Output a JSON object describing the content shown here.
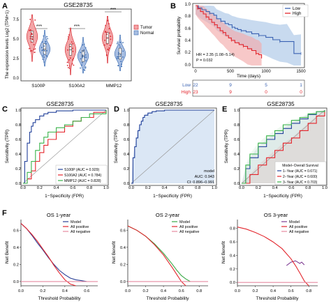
{
  "colors": {
    "tumor": "#d7232b",
    "normal": "#3b6db3",
    "low": "#3a62b2",
    "high": "#e3252c",
    "low_band": "#aac6e6",
    "high_band": "#f3aaaa",
    "roc_b_fill": "#dbe7f5",
    "green": "#39b34a",
    "blue_roc": "#22419a",
    "red_roc": "#e5242b",
    "diag": "#9a9a9a",
    "dca_model": "#2b3f96",
    "dca_allpos": "#e3262d",
    "dca_allneg": "#e58aa0",
    "dca_green": "#39a845",
    "dca_purple": "#7e3c93"
  },
  "panel_labels": [
    "A",
    "B",
    "C",
    "D",
    "E",
    "F"
  ],
  "panelA": {
    "title": "GSE28735",
    "ylabel": "The expression levels Log2 (TPM+1)",
    "yticks": [
      "0.0",
      "2.5",
      "5.0",
      "7.5"
    ],
    "categories": [
      "S100P",
      "S100A2",
      "MMP12"
    ],
    "significance": [
      "***",
      "***",
      "***"
    ],
    "legend": [
      "Tumor",
      "Normal"
    ]
  },
  "panelB": {
    "ylabel": "Survival probability",
    "yticks": [
      "0.0",
      "0.2",
      "0.4",
      "0.6",
      "0.8",
      "1.0"
    ],
    "xlabel": "Time (days)",
    "xticks": [
      "0",
      "500",
      "1000",
      "1500"
    ],
    "legend": [
      "Low",
      "High"
    ],
    "stats": [
      "HR = 2.35 (1.08−5.14)",
      "P = 0.032"
    ],
    "risk_table": {
      "rows": [
        "Low",
        "High"
      ],
      "low": [
        "22",
        "9",
        "5",
        "1"
      ],
      "high": [
        "23",
        "9",
        "0",
        "0"
      ]
    }
  },
  "panelC": {
    "title": "GSE28735",
    "xlabel": "1−Specificity (FPR)",
    "ylabel": "Sensitivity (TPR)",
    "ticks": [
      "0.0",
      "0.2",
      "0.4",
      "0.6",
      "0.8",
      "1.0"
    ],
    "legend": [
      "S100P (AUC = 0.929)",
      "S100A2 (AUC = 0.784)",
      "MMP12 (AUC = 0.828)"
    ]
  },
  "panelD": {
    "title": "GSE28735",
    "xlabel": "1−Specificity (FPR)",
    "ylabel": "Sensitivity (TPR)",
    "ticks": [
      "0.0",
      "0.2",
      "0.4",
      "0.6",
      "0.8",
      "1.0"
    ],
    "annot": [
      "model",
      "AUC: 0.943",
      "CI: 0.896−0.991"
    ]
  },
  "panelE": {
    "title": "GSE28735",
    "xlabel": "1−Specificity (FPR)",
    "ylabel": "Sensitivity (TPR)",
    "ticks": [
      "0.0",
      "0.2",
      "0.4",
      "0.6",
      "0.8",
      "1.0"
    ],
    "legend_title": "Model−Overall Survival",
    "legend": [
      "1−Year (AUC = 0.671)",
      "2−Year (AUC = 0.600)",
      "3−Year (AUC = 0.703)"
    ]
  },
  "panelF": [
    {
      "title": "OS 1-year",
      "ylabel": "Net Benefit",
      "xlabel": "Threshold Probability",
      "xticks": [
        "0.0",
        "0.2",
        "0.4",
        "0.6"
      ],
      "yticks": [
        "0.0",
        "0.2",
        "0.4",
        "0.6"
      ],
      "legend": [
        "Model",
        "All positive",
        "All negative"
      ]
    },
    {
      "title": "OS 2-year",
      "ylabel": "Net Benefit",
      "xlabel": "Threshold Probability",
      "xticks": [
        "0.0",
        "0.2",
        "0.4",
        "0.6",
        "0.8"
      ],
      "yticks": [
        "0.0",
        "0.2",
        "0.4",
        "0.6"
      ],
      "legend": [
        "Model",
        "All positive",
        "All negative"
      ]
    },
    {
      "title": "OS 3-year",
      "ylabel": "Net Benefit",
      "xlabel": "Threshold Probability",
      "xticks": [
        "0.0",
        "0.2",
        "0.4",
        "0.6",
        "0.8"
      ],
      "yticks": [
        "0.0",
        "0.2",
        "0.4",
        "0.6",
        "0.8"
      ],
      "legend": [
        "Model",
        "All positive",
        "All negative"
      ]
    }
  ],
  "chart_data": [
    {
      "type": "violin",
      "panel": "A",
      "title": "GSE28735",
      "categories": [
        "S100P",
        "S100A2",
        "MMP12"
      ],
      "series": [
        {
          "name": "Tumor",
          "medians": [
            5.5,
            3.8,
            5.3
          ]
        },
        {
          "name": "Normal",
          "medians": [
            3.9,
            3.0,
            3.3
          ]
        }
      ],
      "ylim": [
        0,
        9
      ]
    },
    {
      "type": "line",
      "panel": "B",
      "xlim": [
        0,
        1500
      ],
      "ylim": [
        0,
        1
      ],
      "series": [
        {
          "name": "Low",
          "x": [
            0,
            40,
            90,
            150,
            200,
            260,
            300,
            360,
            420,
            470,
            520,
            560,
            600,
            650,
            720,
            800,
            900,
            1000,
            1100,
            1200,
            1300,
            1400,
            1500
          ],
          "y": [
            1.0,
            0.96,
            0.93,
            0.9,
            0.87,
            0.84,
            0.78,
            0.74,
            0.7,
            0.68,
            0.64,
            0.62,
            0.6,
            0.58,
            0.56,
            0.53,
            0.5,
            0.47,
            0.43,
            0.4,
            0.4,
            0.2,
            0.2
          ]
        },
        {
          "name": "High",
          "x": [
            0,
            30,
            70,
            110,
            150,
            190,
            230,
            270,
            310,
            350,
            390,
            430,
            470,
            510,
            560,
            620,
            680,
            740,
            800,
            860,
            900,
            940
          ],
          "y": [
            1.0,
            0.95,
            0.9,
            0.86,
            0.81,
            0.77,
            0.72,
            0.68,
            0.63,
            0.58,
            0.55,
            0.5,
            0.46,
            0.42,
            0.38,
            0.35,
            0.32,
            0.28,
            0.25,
            0.2,
            0.18,
            0.12
          ]
        }
      ]
    },
    {
      "type": "line",
      "panel": "C",
      "xlim": [
        0,
        1
      ],
      "ylim": [
        0,
        1
      ],
      "series": [
        {
          "name": "S100P (AUC = 0.929)",
          "x": [
            0,
            0.02,
            0.05,
            0.08,
            0.1,
            0.12,
            0.15,
            0.2,
            0.25,
            0.3,
            0.4,
            0.6,
            1.0
          ],
          "y": [
            0,
            0.3,
            0.55,
            0.7,
            0.78,
            0.83,
            0.87,
            0.92,
            0.95,
            0.97,
            0.99,
            1.0,
            1.0
          ]
        },
        {
          "name": "S100A2 (AUC = 0.784)",
          "x": [
            0,
            0.05,
            0.1,
            0.15,
            0.2,
            0.25,
            0.3,
            0.4,
            0.5,
            0.6,
            0.7,
            0.85,
            1.0
          ],
          "y": [
            0,
            0.06,
            0.17,
            0.3,
            0.42,
            0.52,
            0.6,
            0.7,
            0.78,
            0.85,
            0.9,
            0.97,
            1.0
          ]
        },
        {
          "name": "MMP12 (AUC = 0.828)",
          "x": [
            0,
            0.05,
            0.1,
            0.15,
            0.2,
            0.25,
            0.3,
            0.4,
            0.5,
            0.6,
            0.7,
            0.8,
            1.0
          ],
          "y": [
            0,
            0.15,
            0.3,
            0.45,
            0.55,
            0.63,
            0.7,
            0.76,
            0.8,
            0.85,
            0.9,
            0.95,
            1.0
          ]
        }
      ]
    },
    {
      "type": "line",
      "panel": "D",
      "xlim": [
        0,
        1
      ],
      "ylim": [
        0,
        1
      ],
      "series": [
        {
          "name": "model",
          "x": [
            0,
            0.02,
            0.04,
            0.06,
            0.08,
            0.1,
            0.12,
            0.14,
            0.16,
            0.2,
            0.25,
            0.3,
            0.4,
            1.0
          ],
          "y": [
            0,
            0.35,
            0.5,
            0.62,
            0.72,
            0.8,
            0.85,
            0.9,
            0.93,
            0.96,
            0.98,
            0.99,
            1.0,
            1.0
          ]
        }
      ]
    },
    {
      "type": "line",
      "panel": "E",
      "xlim": [
        0,
        1
      ],
      "ylim": [
        0,
        1
      ],
      "series": [
        {
          "name": "1−Year (AUC = 0.671)",
          "x": [
            0,
            0.05,
            0.1,
            0.2,
            0.3,
            0.4,
            0.5,
            0.6,
            0.7,
            0.8,
            0.9,
            1.0
          ],
          "y": [
            0,
            0.2,
            0.35,
            0.5,
            0.6,
            0.68,
            0.75,
            0.82,
            0.88,
            0.94,
            0.98,
            1.0
          ]
        },
        {
          "name": "2−Year (AUC = 0.600)",
          "x": [
            0,
            0.1,
            0.2,
            0.3,
            0.4,
            0.5,
            0.6,
            0.7,
            0.8,
            0.9,
            1.0
          ],
          "y": [
            0,
            0.12,
            0.25,
            0.35,
            0.45,
            0.55,
            0.62,
            0.72,
            0.82,
            0.92,
            1.0
          ]
        },
        {
          "name": "3−Year (AUC = 0.703)",
          "x": [
            0,
            0.05,
            0.1,
            0.2,
            0.3,
            0.4,
            0.5,
            0.6,
            0.7,
            0.8,
            0.9,
            1.0
          ],
          "y": [
            0,
            0.25,
            0.4,
            0.55,
            0.65,
            0.72,
            0.8,
            0.86,
            0.9,
            0.95,
            0.98,
            1.0
          ]
        }
      ]
    },
    {
      "type": "line",
      "panel": "F-1",
      "title": "OS 1-year",
      "xlim": [
        0,
        0.7
      ],
      "ylim": [
        -0.05,
        0.7
      ],
      "series": [
        {
          "name": "Model",
          "x": [
            0,
            0.05,
            0.1,
            0.15,
            0.2,
            0.25,
            0.3,
            0.35,
            0.4,
            0.45,
            0.5,
            0.55,
            0.6
          ],
          "y": [
            0.68,
            0.62,
            0.54,
            0.45,
            0.37,
            0.28,
            0.2,
            0.13,
            0.08,
            0.04,
            0.02,
            0.01,
            0.0
          ]
        },
        {
          "name": "All positive",
          "x": [
            0,
            0.05,
            0.1,
            0.15,
            0.2,
            0.25,
            0.3,
            0.35,
            0.4,
            0.45,
            0.5
          ],
          "y": [
            0.68,
            0.62,
            0.55,
            0.47,
            0.38,
            0.29,
            0.19,
            0.1,
            0.02,
            -0.03,
            -0.05
          ]
        },
        {
          "name": "All negative",
          "x": [
            0,
            0.7
          ],
          "y": [
            0,
            0
          ]
        }
      ]
    },
    {
      "type": "line",
      "panel": "F-2",
      "title": "OS 2-year",
      "xlim": [
        0,
        0.9
      ],
      "ylim": [
        -0.05,
        0.7
      ],
      "series": [
        {
          "name": "Model",
          "x": [
            0,
            0.1,
            0.2,
            0.3,
            0.4,
            0.5,
            0.55,
            0.6,
            0.65,
            0.7
          ],
          "y": [
            0.65,
            0.6,
            0.53,
            0.44,
            0.33,
            0.2,
            0.13,
            0.07,
            0.03,
            0.0
          ]
        },
        {
          "name": "All positive",
          "x": [
            0,
            0.1,
            0.2,
            0.3,
            0.4,
            0.5,
            0.55,
            0.6,
            0.65
          ],
          "y": [
            0.65,
            0.6,
            0.53,
            0.43,
            0.31,
            0.16,
            0.08,
            0.0,
            -0.05
          ]
        },
        {
          "name": "All negative",
          "x": [
            0,
            0.9
          ],
          "y": [
            0,
            0
          ]
        }
      ]
    },
    {
      "type": "line",
      "panel": "F-3",
      "title": "OS 3-year",
      "xlim": [
        0,
        0.9
      ],
      "ylim": [
        -0.05,
        0.9
      ],
      "series": [
        {
          "name": "Model",
          "x": [
            0.55,
            0.6,
            0.65,
            0.7,
            0.72,
            0.75
          ],
          "y": [
            0.25,
            0.3,
            0.32,
            0.28,
            0.3,
            0.26
          ]
        },
        {
          "name": "All positive",
          "x": [
            0,
            0.1,
            0.2,
            0.3,
            0.4,
            0.5,
            0.6,
            0.65,
            0.7,
            0.75,
            0.8
          ],
          "y": [
            0.82,
            0.79,
            0.74,
            0.68,
            0.6,
            0.5,
            0.35,
            0.25,
            0.14,
            0.02,
            -0.05
          ]
        },
        {
          "name": "All negative",
          "x": [
            0,
            0.9
          ],
          "y": [
            0,
            0
          ]
        }
      ]
    }
  ]
}
